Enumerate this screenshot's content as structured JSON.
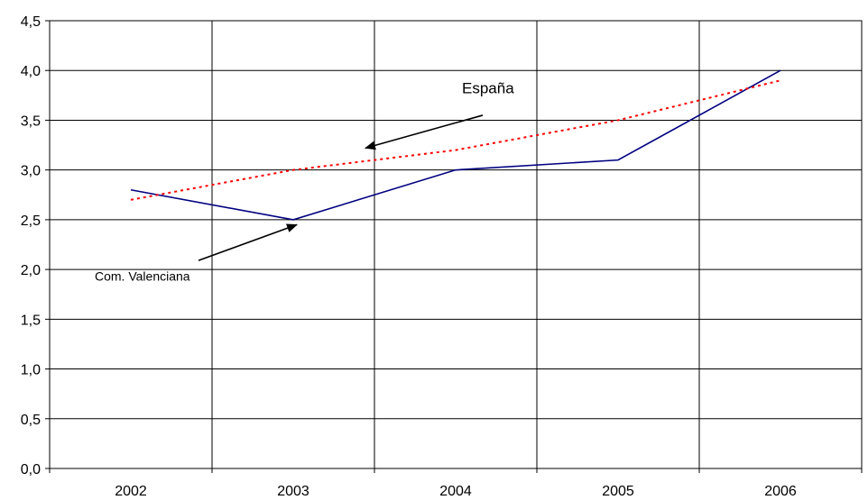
{
  "chart_data": {
    "type": "line",
    "title": "",
    "xlabel": "",
    "ylabel": "",
    "categories": [
      "2002",
      "2003",
      "2004",
      "2005",
      "2006"
    ],
    "ylim": [
      0,
      4.5
    ],
    "y_ticks": [
      "0,0",
      "0,5",
      "1,0",
      "1,5",
      "2,0",
      "2,5",
      "3,0",
      "3,5",
      "4,0",
      "4,5"
    ],
    "grid": true,
    "legend": "none",
    "series": [
      {
        "name": "Com. Valenciana",
        "values": [
          2.8,
          2.5,
          3.0,
          3.1,
          4.0
        ],
        "color": "#000080",
        "style": "solid"
      },
      {
        "name": "España",
        "values": [
          2.7,
          3.0,
          3.2,
          3.5,
          3.9
        ],
        "color": "#ff0000",
        "style": "dotted"
      }
    ],
    "annotations": [
      {
        "text": "España",
        "series": "España",
        "arrow": true
      },
      {
        "text": "Com. Valenciana",
        "series": "Com. Valenciana",
        "arrow": true
      }
    ]
  }
}
